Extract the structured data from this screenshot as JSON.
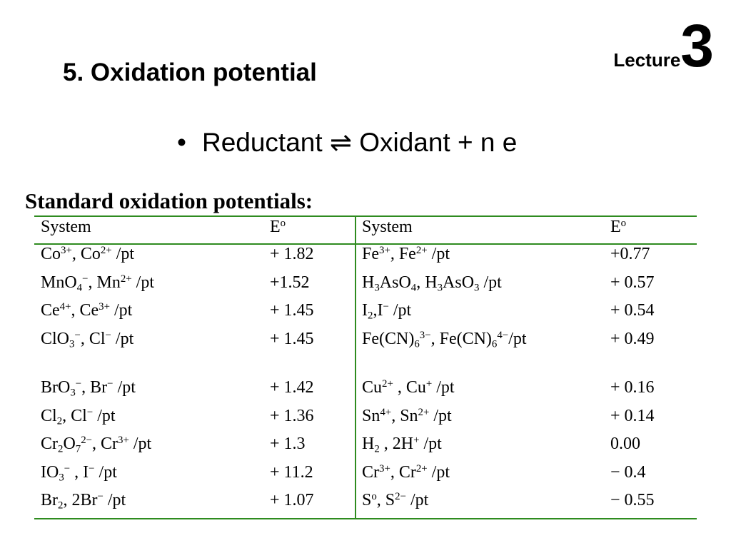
{
  "header": {
    "title": "5. Oxidation potential",
    "lecture_label": "Lecture",
    "lecture_number": "3"
  },
  "bullet": "Reductant  ⇌ Oxidant + n e",
  "table": {
    "caption": "Standard oxidation potentials:",
    "columns": [
      [
        "System"
      ],
      [
        "E",
        {
          "sup": "o"
        }
      ],
      [
        "System"
      ],
      [
        "E",
        {
          "sup": "o"
        }
      ]
    ],
    "rows": [
      [
        [
          "Co",
          {
            "sup": "3+"
          },
          ", Co",
          {
            "sup": "2+"
          },
          " /pt"
        ],
        [
          "+ 1.82"
        ],
        [
          "Fe",
          {
            "sup": "3+"
          },
          ", Fe",
          {
            "sup": "2+"
          },
          " /pt"
        ],
        [
          "+0.77"
        ]
      ],
      [
        [
          "MnO",
          {
            "sub": "4"
          },
          {
            "sup": "−"
          },
          ", Mn",
          {
            "sup": "2+"
          },
          " /pt"
        ],
        [
          "+1.52"
        ],
        [
          "H",
          {
            "sub": "3"
          },
          "AsO",
          {
            "sub": "4"
          },
          ", H",
          {
            "sub": "3"
          },
          "AsO",
          {
            "sub": "3"
          },
          " /pt"
        ],
        [
          "+ 0.57"
        ]
      ],
      [
        [
          "Ce",
          {
            "sup": "4+"
          },
          ", Ce",
          {
            "sup": "3+"
          },
          " /pt"
        ],
        [
          "+ 1.45"
        ],
        [
          "I",
          {
            "sub": "2"
          },
          ",I",
          {
            "sup": "−"
          },
          " /pt"
        ],
        [
          "+ 0.54"
        ]
      ],
      [
        [
          "ClO",
          {
            "sub": "3"
          },
          {
            "sup": "−"
          },
          ", Cl",
          {
            "sup": "−"
          },
          " /pt"
        ],
        [
          "+ 1.45"
        ],
        [
          "Fe(CN)",
          {
            "sub": "6"
          },
          {
            "sup": "3−"
          },
          ", Fe(CN)",
          {
            "sub": "6"
          },
          {
            "sup": "4−"
          },
          "/pt"
        ],
        [
          "+ 0.49"
        ]
      ],
      [
        [
          "BrO",
          {
            "sub": "3"
          },
          {
            "sup": "−"
          },
          ", Br",
          {
            "sup": "−"
          },
          " /pt"
        ],
        [
          "+ 1.42"
        ],
        [
          "Cu",
          {
            "sup": "2+"
          },
          " , Cu",
          {
            "sup": "+"
          },
          " /pt"
        ],
        [
          "+ 0.16"
        ]
      ],
      [
        [
          "Cl",
          {
            "sub": "2"
          },
          ", Cl",
          {
            "sup": "−"
          },
          " /pt"
        ],
        [
          "+ 1.36"
        ],
        [
          "Sn",
          {
            "sup": "4+"
          },
          ", Sn",
          {
            "sup": "2+"
          },
          " /pt"
        ],
        [
          "+ 0.14"
        ]
      ],
      [
        [
          "Cr",
          {
            "sub": "2"
          },
          "O",
          {
            "sub": "7"
          },
          {
            "sup": "2−"
          },
          ", Cr",
          {
            "sup": "3+"
          },
          " /pt"
        ],
        [
          "+ 1.3"
        ],
        [
          "H",
          {
            "sub": "2"
          },
          " , 2H",
          {
            "sup": "+"
          },
          " /pt"
        ],
        [
          "0.00"
        ]
      ],
      [
        [
          "IO",
          {
            "sub": "3"
          },
          {
            "sup": "−"
          },
          " , I",
          {
            "sup": "−"
          },
          " /pt"
        ],
        [
          "+ 11.2"
        ],
        [
          "Cr",
          {
            "sup": "3+"
          },
          ", Cr",
          {
            "sup": "2+"
          },
          " /pt"
        ],
        [
          "− 0.4"
        ]
      ],
      [
        [
          "Br",
          {
            "sub": "2"
          },
          ", 2Br",
          {
            "sup": "−"
          },
          " /pt"
        ],
        [
          "+ 1.07"
        ],
        [
          "S",
          {
            "sup": "o"
          },
          ", S",
          {
            "sup": "2−"
          },
          " /pt"
        ],
        [
          "− 0.55"
        ]
      ]
    ]
  }
}
